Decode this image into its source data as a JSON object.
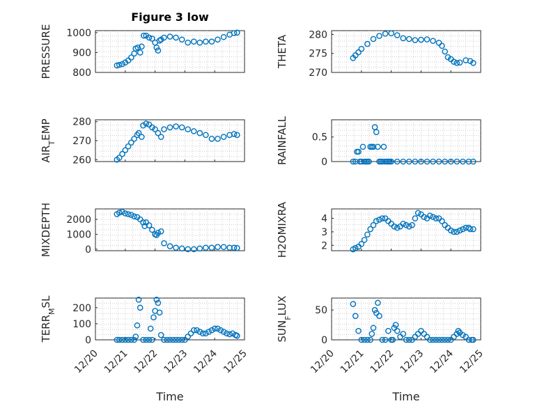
{
  "colors": {
    "marker": "#0072bd",
    "axis": "#262626",
    "grid": "#bdbdbd"
  },
  "chart_data": [
    {
      "type": "scatter",
      "title": "Figure 3 low",
      "ylabel": "PRESSURE",
      "xlabel": "",
      "xtick_labels": [],
      "yticks": [
        "800",
        "900",
        "1000"
      ],
      "xlim": [
        20,
        25
      ],
      "ylim": [
        800,
        1010
      ],
      "tick_values": [
        800,
        900,
        1000
      ],
      "grid": true,
      "x": [
        20.72,
        20.8,
        20.9,
        21.0,
        21.1,
        21.2,
        21.3,
        21.35,
        21.42,
        21.5,
        21.55,
        21.62,
        21.7,
        21.8,
        21.9,
        22.0,
        22.05,
        22.1,
        22.15,
        22.2,
        22.3,
        22.5,
        22.7,
        22.9,
        23.1,
        23.3,
        23.5,
        23.7,
        23.9,
        24.1,
        24.3,
        24.5,
        24.65,
        24.75
      ],
      "y": [
        835,
        838,
        842,
        850,
        860,
        875,
        895,
        920,
        925,
        900,
        930,
        985,
        985,
        975,
        970,
        950,
        925,
        910,
        960,
        965,
        975,
        980,
        975,
        965,
        950,
        955,
        950,
        955,
        955,
        965,
        978,
        990,
        998,
        1000
      ]
    },
    {
      "type": "scatter",
      "title": "",
      "ylabel": "THETA",
      "xlabel": "",
      "xtick_labels": [],
      "yticks": [
        "270",
        "275",
        "280"
      ],
      "xlim": [
        20,
        25
      ],
      "ylim": [
        270,
        281
      ],
      "tick_values": [
        270,
        275,
        280
      ],
      "grid": true,
      "x": [
        20.72,
        20.8,
        20.9,
        21.0,
        21.2,
        21.4,
        21.6,
        21.8,
        22.0,
        22.2,
        22.4,
        22.6,
        22.8,
        23.0,
        23.2,
        23.4,
        23.6,
        23.7,
        23.8,
        23.9,
        24.0,
        24.1,
        24.2,
        24.3,
        24.5,
        24.65,
        24.75
      ],
      "y": [
        273.8,
        274.5,
        275.3,
        276.2,
        277.5,
        278.8,
        279.6,
        280.2,
        280.3,
        279.8,
        279.0,
        278.8,
        278.5,
        278.6,
        278.7,
        278.3,
        277.8,
        277.0,
        275.5,
        274.0,
        273.5,
        272.8,
        272.5,
        272.6,
        273.2,
        273.0,
        272.5
      ]
    },
    {
      "type": "scatter",
      "title": "",
      "ylabel": "AIR_TEMP",
      "xlabel": "",
      "xtick_labels": [],
      "yticks": [
        "260",
        "270",
        "280"
      ],
      "xlim": [
        20,
        25
      ],
      "ylim": [
        259,
        281
      ],
      "tick_values": [
        260,
        270,
        280
      ],
      "grid": true,
      "x": [
        20.72,
        20.8,
        20.9,
        21.0,
        21.1,
        21.2,
        21.3,
        21.4,
        21.45,
        21.55,
        21.6,
        21.7,
        21.8,
        21.9,
        22.0,
        22.1,
        22.2,
        22.3,
        22.5,
        22.7,
        22.9,
        23.1,
        23.3,
        23.5,
        23.7,
        23.9,
        24.1,
        24.3,
        24.5,
        24.65,
        24.75
      ],
      "y": [
        260,
        261,
        263,
        265,
        267,
        269,
        271,
        273,
        274,
        272,
        278,
        279,
        278.5,
        277,
        276,
        274,
        272,
        276,
        277,
        277.5,
        277,
        276,
        275,
        274,
        273,
        271,
        271,
        272,
        273,
        273.5,
        273
      ]
    },
    {
      "type": "scatter",
      "title": "",
      "ylabel": "RAINFALL",
      "xlabel": "",
      "xtick_labels": [],
      "yticks": [
        "0",
        "0.5"
      ],
      "xlim": [
        20,
        25
      ],
      "ylim": [
        0,
        0.85
      ],
      "tick_values": [
        0,
        0.5
      ],
      "grid": true,
      "x": [
        20.72,
        20.8,
        20.85,
        20.9,
        20.95,
        21.0,
        21.05,
        21.1,
        21.15,
        21.2,
        21.25,
        21.3,
        21.35,
        21.4,
        21.45,
        21.5,
        21.55,
        21.6,
        21.65,
        21.7,
        21.75,
        21.8,
        21.85,
        21.9,
        21.95,
        22.0,
        22.2,
        22.4,
        22.6,
        22.8,
        23.0,
        23.2,
        23.4,
        23.6,
        23.8,
        24.0,
        24.2,
        24.4,
        24.6,
        24.75
      ],
      "y": [
        0,
        0,
        0.2,
        0.2,
        0,
        0,
        0.3,
        0,
        0,
        0,
        0,
        0.3,
        0.3,
        0.3,
        0.7,
        0.6,
        0.3,
        0,
        0,
        0,
        0.3,
        0,
        0,
        0,
        0,
        0,
        0,
        0,
        0,
        0,
        0,
        0,
        0,
        0,
        0,
        0,
        0,
        0,
        0,
        0
      ]
    },
    {
      "type": "scatter",
      "title": "",
      "ylabel": "MIXDEPTH",
      "xlabel": "",
      "xtick_labels": [],
      "yticks": [
        "0",
        "1000",
        "2000"
      ],
      "xlim": [
        20,
        25
      ],
      "ylim": [
        -100,
        2700
      ],
      "tick_values": [
        0,
        1000,
        2000
      ],
      "grid": true,
      "x": [
        20.72,
        20.8,
        20.9,
        21.0,
        21.1,
        21.2,
        21.3,
        21.4,
        21.5,
        21.6,
        21.65,
        21.7,
        21.8,
        21.9,
        22.0,
        22.05,
        22.1,
        22.2,
        22.3,
        22.5,
        22.7,
        22.9,
        23.1,
        23.3,
        23.5,
        23.7,
        23.9,
        24.1,
        24.3,
        24.5,
        24.65,
        24.75
      ],
      "y": [
        2350,
        2450,
        2500,
        2400,
        2350,
        2300,
        2200,
        2150,
        2000,
        1800,
        1550,
        1800,
        1600,
        1300,
        1000,
        950,
        1100,
        1200,
        400,
        200,
        100,
        50,
        0,
        0,
        50,
        100,
        100,
        150,
        150,
        100,
        100,
        80
      ]
    },
    {
      "type": "scatter",
      "title": "",
      "ylabel": "H2OMIXRA",
      "xlabel": "",
      "xtick_labels": [],
      "yticks": [
        "2",
        "3",
        "4"
      ],
      "xlim": [
        20,
        25
      ],
      "ylim": [
        1.6,
        4.7
      ],
      "tick_values": [
        2,
        3,
        4
      ],
      "grid": true,
      "x": [
        20.72,
        20.8,
        20.9,
        21.0,
        21.1,
        21.2,
        21.3,
        21.4,
        21.5,
        21.6,
        21.7,
        21.8,
        21.9,
        22.0,
        22.1,
        22.2,
        22.3,
        22.4,
        22.5,
        22.6,
        22.7,
        22.8,
        22.9,
        23.0,
        23.1,
        23.2,
        23.3,
        23.4,
        23.5,
        23.6,
        23.7,
        23.8,
        23.9,
        24.0,
        24.1,
        24.2,
        24.3,
        24.4,
        24.5,
        24.6,
        24.65,
        24.75
      ],
      "y": [
        1.7,
        1.8,
        1.9,
        2.1,
        2.4,
        2.8,
        3.2,
        3.5,
        3.8,
        3.9,
        4.0,
        4.0,
        3.8,
        3.6,
        3.4,
        3.3,
        3.4,
        3.6,
        3.5,
        3.4,
        3.5,
        4.0,
        4.4,
        4.3,
        4.1,
        4.0,
        4.2,
        4.1,
        4.0,
        4.0,
        3.8,
        3.5,
        3.3,
        3.1,
        3.0,
        3.0,
        3.1,
        3.2,
        3.3,
        3.3,
        3.2,
        3.2
      ]
    },
    {
      "type": "scatter",
      "title": "",
      "ylabel": "TERR_MSL",
      "xlabel": "Time",
      "xtick_labels": [
        "12/20",
        "12/21",
        "12/22",
        "12/23",
        "12/24",
        "12/25"
      ],
      "yticks": [
        "0",
        "100",
        "200"
      ],
      "xlim": [
        20,
        25
      ],
      "ylim": [
        0,
        260
      ],
      "tick_values": [
        0,
        100,
        200
      ],
      "grid": true,
      "x": [
        20.72,
        20.8,
        20.9,
        21.0,
        21.1,
        21.2,
        21.3,
        21.35,
        21.4,
        21.45,
        21.5,
        21.6,
        21.7,
        21.8,
        21.85,
        21.9,
        21.95,
        22.0,
        22.05,
        22.1,
        22.15,
        22.2,
        22.3,
        22.4,
        22.5,
        22.6,
        22.7,
        22.8,
        22.9,
        23.0,
        23.1,
        23.2,
        23.3,
        23.4,
        23.5,
        23.6,
        23.7,
        23.8,
        23.9,
        24.0,
        24.1,
        24.2,
        24.3,
        24.4,
        24.5,
        24.6,
        24.7,
        24.75
      ],
      "y": [
        0,
        0,
        0,
        0,
        0,
        0,
        0,
        20,
        90,
        250,
        200,
        0,
        0,
        0,
        70,
        0,
        140,
        180,
        250,
        230,
        170,
        30,
        0,
        0,
        0,
        0,
        0,
        0,
        0,
        0,
        20,
        40,
        60,
        60,
        50,
        40,
        40,
        50,
        60,
        70,
        70,
        60,
        50,
        40,
        35,
        40,
        30,
        25
      ]
    },
    {
      "type": "scatter",
      "title": "",
      "ylabel": "SUN_FLUX",
      "xlabel": "Time",
      "xtick_labels": [
        "12/20",
        "12/21",
        "12/22",
        "12/23",
        "12/24",
        "12/25"
      ],
      "yticks": [
        "0",
        "50"
      ],
      "xlim": [
        20,
        25
      ],
      "ylim": [
        0,
        70
      ],
      "tick_values": [
        0,
        50
      ],
      "grid": true,
      "x": [
        20.72,
        20.8,
        20.9,
        21.0,
        21.1,
        21.2,
        21.3,
        21.35,
        21.4,
        21.45,
        21.5,
        21.55,
        21.6,
        21.7,
        21.8,
        21.9,
        22.0,
        22.05,
        22.1,
        22.15,
        22.2,
        22.3,
        22.4,
        22.5,
        22.6,
        22.7,
        22.8,
        22.9,
        23.0,
        23.1,
        23.2,
        23.3,
        23.4,
        23.5,
        23.6,
        23.7,
        23.8,
        23.9,
        24.0,
        24.1,
        24.2,
        24.25,
        24.3,
        24.4,
        24.5,
        24.6,
        24.7,
        24.75
      ],
      "y": [
        60,
        40,
        15,
        0,
        0,
        0,
        0,
        10,
        20,
        50,
        45,
        62,
        40,
        0,
        0,
        15,
        0,
        0,
        20,
        25,
        15,
        5,
        10,
        0,
        0,
        0,
        5,
        10,
        15,
        10,
        5,
        0,
        0,
        0,
        0,
        0,
        0,
        0,
        0,
        5,
        10,
        15,
        12,
        8,
        5,
        0,
        0,
        0
      ]
    }
  ]
}
